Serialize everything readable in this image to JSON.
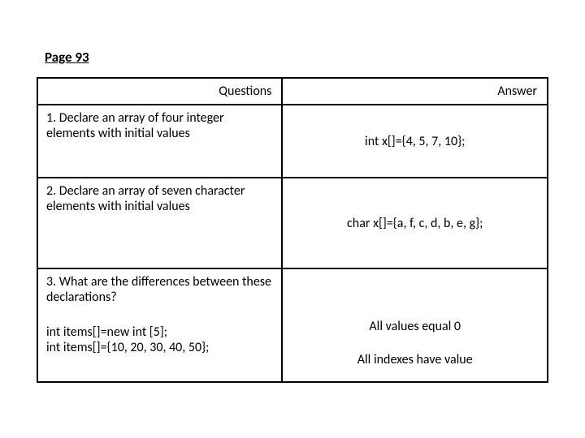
{
  "page_title": "Page 93",
  "table": {
    "headers": {
      "questions": "Questions",
      "answer": "Answer"
    },
    "rows": [
      {
        "question": "1. Declare an array of four integer elements with initial values",
        "answer": "int x[]={4, 5, 7, 10};"
      },
      {
        "question": "2. Declare an array of seven character elements with initial values",
        "answer": "char  x[]={a, f, c, d, b, e, g};"
      },
      {
        "question_main": "3. What are the differences between these declarations?",
        "question_sub1": "int  items[]=new int  [5];",
        "question_sub2": "int items[]={10, 20, 30, 40, 50};",
        "answer_line1": "All values equal 0",
        "answer_line2": "All indexes have value"
      }
    ]
  },
  "styling": {
    "background_color": "#ffffff",
    "border_color": "#000000",
    "border_width": 2,
    "title_fontsize": 17,
    "cell_fontsize": 16,
    "font_family": "Calibri"
  }
}
